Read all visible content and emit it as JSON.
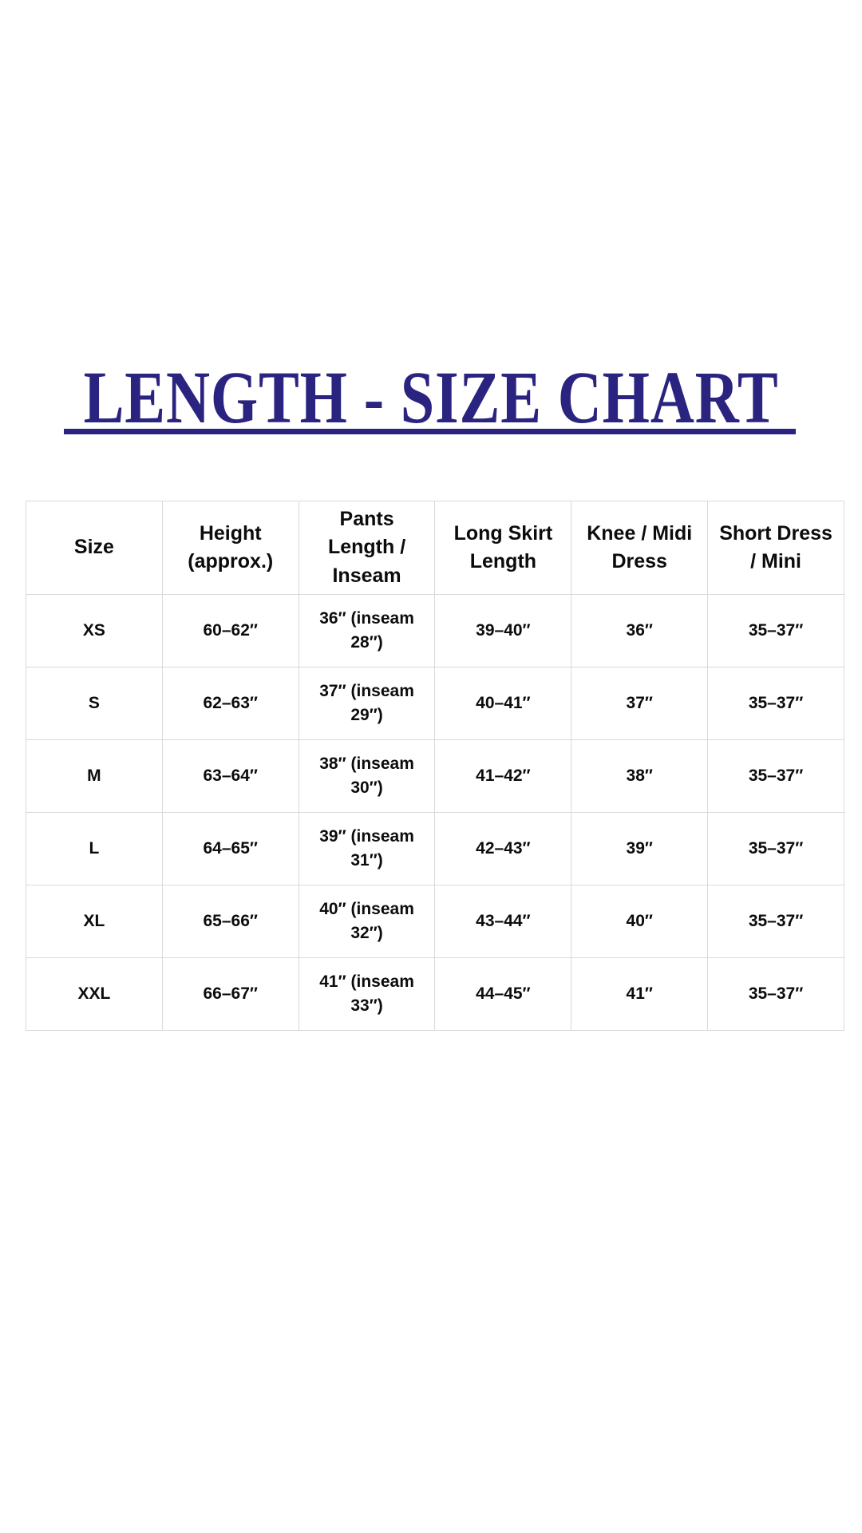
{
  "title": {
    "text": "LENGTH - SIZE CHART",
    "color": "#2a2480"
  },
  "table": {
    "border_color": "#d9d9d9",
    "text_color": "#0c0c0c",
    "columns": [
      "Size",
      "Height\n(approx.)",
      "Pants\nLength /\nInseam",
      "Long Skirt\nLength",
      "Knee / Midi\nDress",
      "Short Dress\n/ Mini"
    ],
    "rows": [
      [
        "XS",
        "60–62″",
        "36″ (inseam\n28″)",
        "39–40″",
        "36″",
        "35–37″"
      ],
      [
        "S",
        "62–63″",
        "37″ (inseam\n29″)",
        "40–41″",
        "37″",
        "35–37″"
      ],
      [
        "M",
        "63–64″",
        "38″ (inseam\n30″)",
        "41–42″",
        "38″",
        "35–37″"
      ],
      [
        "L",
        "64–65″",
        "39″ (inseam\n31″)",
        "42–43″",
        "39″",
        "35–37″"
      ],
      [
        "XL",
        "65–66″",
        "40″ (inseam\n32″)",
        "43–44″",
        "40″",
        "35–37″"
      ],
      [
        "XXL",
        "66–67″",
        "41″ (inseam\n33″)",
        "44–45″",
        "41″",
        "35–37″"
      ]
    ]
  },
  "chart_data": {
    "type": "table",
    "title": "LENGTH - SIZE CHART",
    "columns": [
      "Size",
      "Height (approx.)",
      "Pants Length / Inseam",
      "Long Skirt Length",
      "Knee / Midi Dress",
      "Short Dress / Mini"
    ],
    "rows": [
      [
        "XS",
        "60–62″",
        "36″ (inseam 28″)",
        "39–40″",
        "36″",
        "35–37″"
      ],
      [
        "S",
        "62–63″",
        "37″ (inseam 29″)",
        "40–41″",
        "37″",
        "35–37″"
      ],
      [
        "M",
        "63–64″",
        "38″ (inseam 30″)",
        "41–42″",
        "38″",
        "35–37″"
      ],
      [
        "L",
        "64–65″",
        "39″ (inseam 31″)",
        "42–43″",
        "39″",
        "35–37″"
      ],
      [
        "XL",
        "65–66″",
        "40″ (inseam 32″)",
        "43–44″",
        "40″",
        "35–37″"
      ],
      [
        "XXL",
        "66–67″",
        "41″ (inseam 33″)",
        "44–45″",
        "41″",
        "35–37″"
      ]
    ]
  }
}
